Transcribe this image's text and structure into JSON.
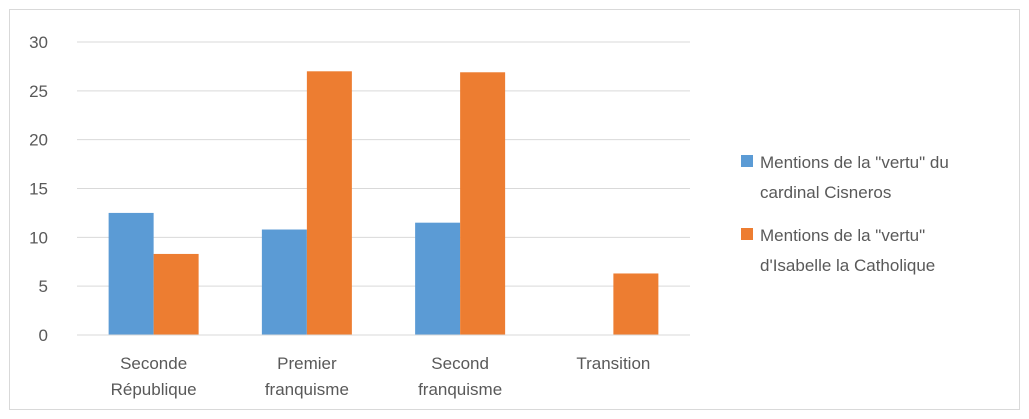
{
  "chart_data": {
    "type": "bar",
    "categories": [
      [
        "Seconde",
        "République"
      ],
      [
        "Premier",
        "franquisme"
      ],
      [
        "Second",
        "franquisme"
      ],
      [
        "Transition"
      ]
    ],
    "series": [
      {
        "name": [
          "Mentions de la \"vertu\" du",
          "cardinal Cisneros"
        ],
        "color": "#5b9bd5",
        "values": [
          12.5,
          10.8,
          11.5,
          null
        ]
      },
      {
        "name": [
          "Mentions de la \"vertu\"",
          "d'Isabelle la Catholique"
        ],
        "color": "#ed7d31",
        "values": [
          8.3,
          27.0,
          26.9,
          6.3
        ]
      }
    ],
    "yticks": [
      "0",
      "5",
      "10",
      "15",
      "20",
      "25",
      "30"
    ],
    "ylim": [
      0,
      30
    ],
    "grid": true,
    "gridColor": "#d9d9d9",
    "legend_position": "right"
  }
}
